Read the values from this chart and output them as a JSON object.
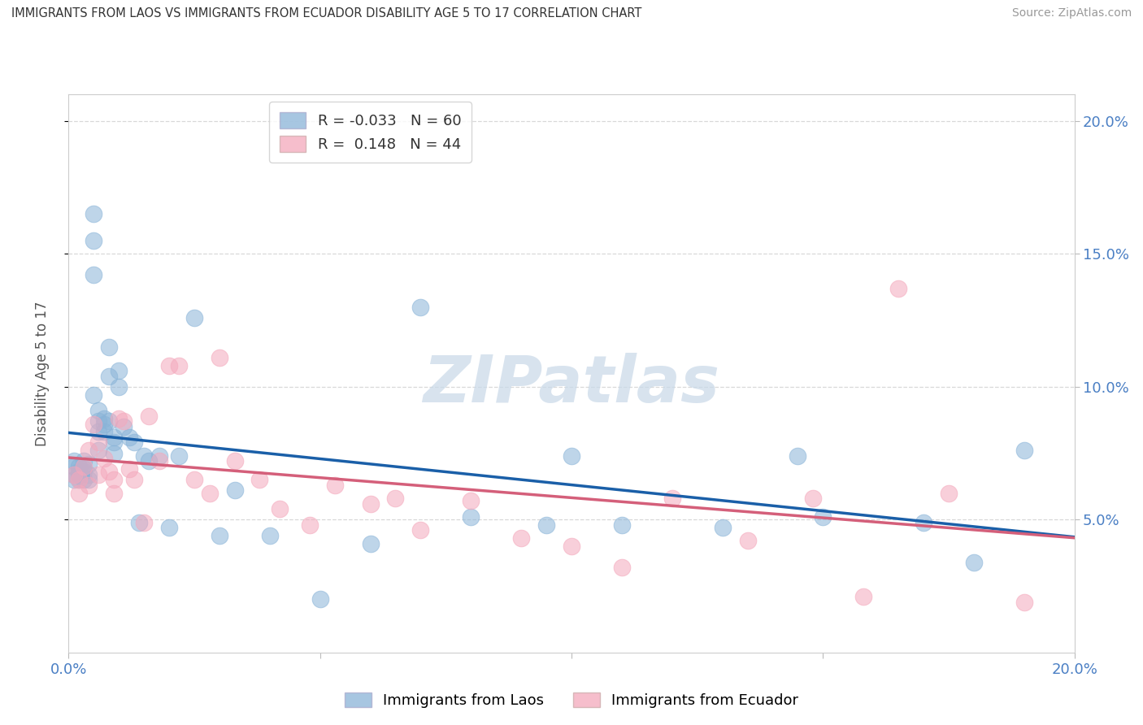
{
  "title": "IMMIGRANTS FROM LAOS VS IMMIGRANTS FROM ECUADOR DISABILITY AGE 5 TO 17 CORRELATION CHART",
  "source": "Source: ZipAtlas.com",
  "ylabel": "Disability Age 5 to 17",
  "legend_label1": "Immigrants from Laos",
  "legend_label2": "Immigrants from Ecuador",
  "r1": "-0.033",
  "n1": "60",
  "r2": "0.148",
  "n2": "44",
  "color_blue": "#8ab4d8",
  "color_pink": "#f4a8bc",
  "color_blue_line": "#1a5fa8",
  "color_pink_line": "#d45f7a",
  "xlim": [
    0.0,
    0.2
  ],
  "ylim": [
    0.0,
    0.21
  ],
  "yticks": [
    0.05,
    0.1,
    0.15,
    0.2
  ],
  "ytick_labels": [
    "5.0%",
    "10.0%",
    "15.0%",
    "20.0%"
  ],
  "laos_x": [
    0.001,
    0.001,
    0.001,
    0.001,
    0.002,
    0.002,
    0.002,
    0.002,
    0.003,
    0.003,
    0.003,
    0.003,
    0.004,
    0.004,
    0.004,
    0.005,
    0.005,
    0.005,
    0.005,
    0.006,
    0.006,
    0.006,
    0.006,
    0.007,
    0.007,
    0.007,
    0.008,
    0.008,
    0.008,
    0.009,
    0.009,
    0.009,
    0.01,
    0.01,
    0.011,
    0.012,
    0.013,
    0.014,
    0.015,
    0.016,
    0.018,
    0.02,
    0.022,
    0.025,
    0.03,
    0.033,
    0.04,
    0.05,
    0.06,
    0.07,
    0.08,
    0.095,
    0.1,
    0.11,
    0.13,
    0.145,
    0.15,
    0.17,
    0.18,
    0.19
  ],
  "laos_y": [
    0.067,
    0.07,
    0.065,
    0.072,
    0.068,
    0.065,
    0.07,
    0.067,
    0.068,
    0.065,
    0.072,
    0.069,
    0.071,
    0.067,
    0.065,
    0.165,
    0.155,
    0.142,
    0.097,
    0.091,
    0.087,
    0.083,
    0.076,
    0.088,
    0.083,
    0.086,
    0.115,
    0.104,
    0.087,
    0.081,
    0.079,
    0.075,
    0.106,
    0.1,
    0.085,
    0.081,
    0.079,
    0.049,
    0.074,
    0.072,
    0.074,
    0.047,
    0.074,
    0.126,
    0.044,
    0.061,
    0.044,
    0.02,
    0.041,
    0.13,
    0.051,
    0.048,
    0.074,
    0.048,
    0.047,
    0.074,
    0.051,
    0.049,
    0.034,
    0.076
  ],
  "ecuador_x": [
    0.001,
    0.002,
    0.002,
    0.003,
    0.004,
    0.004,
    0.005,
    0.006,
    0.006,
    0.007,
    0.008,
    0.009,
    0.009,
    0.01,
    0.011,
    0.012,
    0.013,
    0.015,
    0.016,
    0.018,
    0.02,
    0.022,
    0.025,
    0.028,
    0.03,
    0.033,
    0.038,
    0.042,
    0.048,
    0.053,
    0.06,
    0.065,
    0.07,
    0.08,
    0.09,
    0.1,
    0.11,
    0.12,
    0.135,
    0.148,
    0.158,
    0.165,
    0.175,
    0.19
  ],
  "ecuador_y": [
    0.067,
    0.065,
    0.06,
    0.07,
    0.076,
    0.063,
    0.086,
    0.079,
    0.067,
    0.073,
    0.068,
    0.065,
    0.06,
    0.088,
    0.087,
    0.069,
    0.065,
    0.049,
    0.089,
    0.072,
    0.108,
    0.108,
    0.065,
    0.06,
    0.111,
    0.072,
    0.065,
    0.054,
    0.048,
    0.063,
    0.056,
    0.058,
    0.046,
    0.057,
    0.043,
    0.04,
    0.032,
    0.058,
    0.042,
    0.058,
    0.021,
    0.137,
    0.06,
    0.019
  ],
  "watermark": "ZIPatlas",
  "background_color": "#ffffff",
  "grid_color": "#d8d8d8"
}
